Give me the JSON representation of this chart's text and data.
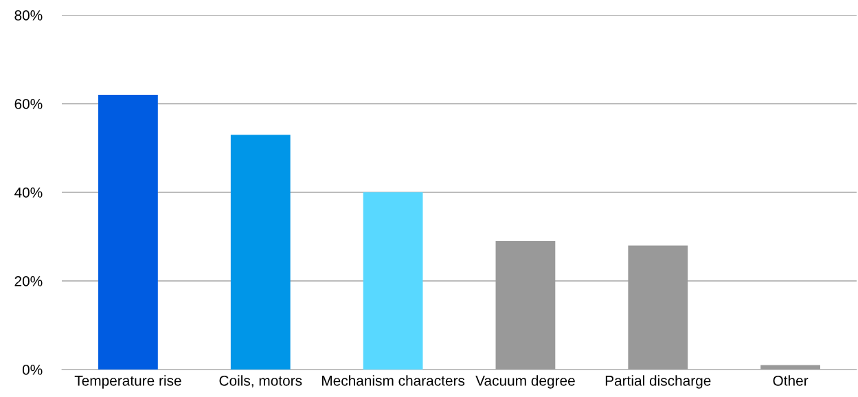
{
  "chart_data": {
    "type": "bar",
    "categories": [
      "Temperature rise",
      "Coils, motors",
      "Mechanism characters",
      "Vacuum degree",
      "Partial discharge",
      "Other"
    ],
    "values": [
      62,
      53,
      40,
      29,
      28,
      1
    ],
    "colors": [
      "#005ce1",
      "#0096e8",
      "#58d8ff",
      "#999999",
      "#999999",
      "#999999"
    ],
    "ylim": [
      0,
      80
    ],
    "yticks": [
      {
        "value": 0,
        "label": "0%"
      },
      {
        "value": 20,
        "label": "20%"
      },
      {
        "value": 40,
        "label": "40%"
      },
      {
        "value": 60,
        "label": "60%"
      },
      {
        "value": 80,
        "label": "80%"
      }
    ],
    "grid": "y"
  }
}
